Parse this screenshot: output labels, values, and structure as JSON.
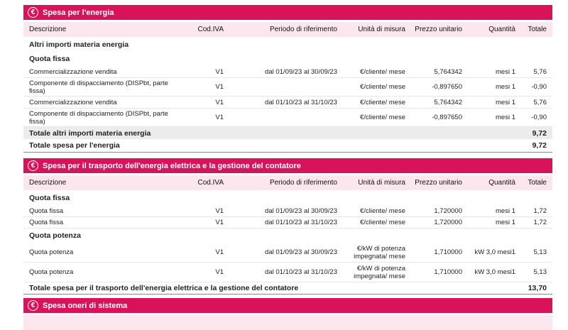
{
  "columns": {
    "descrizione": "Descrizione",
    "cod_iva": "Cod.IVA",
    "periodo": "Periodo di riferimento",
    "unita": "Unità di misura",
    "prezzo": "Prezzo unitario",
    "quantita": "Quantità",
    "totale": "Totale"
  },
  "energia": {
    "title": "Spesa per l'energia",
    "group_title": "Altri importi materia energia",
    "sub_title": "Quota fissa",
    "rows": [
      {
        "desc": "Commercializzazione vendita",
        "iva": "V1",
        "periodo": "dal 01/09/23 al 30/09/23",
        "unita": "€/cliente/ mese",
        "prezzo": "5,764342",
        "quantita": "mesi 1",
        "totale": "5,76"
      },
      {
        "desc": "Componente di dispacciamento (DISPbt, parte fissa)",
        "iva": "V1",
        "periodo": "",
        "unita": "€/cliente/ mese",
        "prezzo": "-0,897650",
        "quantita": "mesi 1",
        "totale": "-0,90"
      },
      {
        "desc": "Commercializzazione vendita",
        "iva": "V1",
        "periodo": "dal 01/10/23 al 31/10/23",
        "unita": "€/cliente/ mese",
        "prezzo": "5,764342",
        "quantita": "mesi 1",
        "totale": "5,76"
      },
      {
        "desc": "Componente di dispacciamento (DISPbt, parte fissa)",
        "iva": "V1",
        "periodo": "",
        "unita": "€/cliente/ mese",
        "prezzo": "-0,897650",
        "quantita": "mesi 1",
        "totale": "-0,90"
      }
    ],
    "subtotal_label": "Totale altri importi materia energia",
    "subtotal_value": "9,72",
    "total_label": "Totale spesa per l'energia",
    "total_value": "9,72"
  },
  "trasporto": {
    "title": "Spesa per il trasporto dell'energia elettrica e la gestione del contatore",
    "fissa_title": "Quota fissa",
    "fissa_rows": [
      {
        "desc": "Quota fissa",
        "iva": "V1",
        "periodo": "dal 01/09/23 al 30/09/23",
        "unita": "€/cliente/ mese",
        "prezzo": "1,720000",
        "quantita": "mesi 1",
        "totale": "1,72"
      },
      {
        "desc": "Quota fissa",
        "iva": "V1",
        "periodo": "dal 01/10/23 al 31/10/23",
        "unita": "€/cliente/ mese",
        "prezzo": "1,720000",
        "quantita": "mesi 1",
        "totale": "1,72"
      }
    ],
    "potenza_title": "Quota potenza",
    "potenza_rows": [
      {
        "desc": "Quota potenza",
        "iva": "V1",
        "periodo": "dal 01/09/23 al 30/09/23",
        "unita": "€/kW di potenza impegnata/ mese",
        "prezzo": "1,710000",
        "quantita": "kW 3,0 mesi1",
        "totale": "5,13"
      },
      {
        "desc": "Quota potenza",
        "iva": "V1",
        "periodo": "dal 01/10/23 al 31/10/23",
        "unita": "€/kW di potenza impegnata/ mese",
        "prezzo": "1,710000",
        "quantita": "kW 3,0 mesi1",
        "totale": "5,13"
      }
    ],
    "total_label": "Totale spesa per il trasporto dell'energia elettrica e la gestione del contatore",
    "total_value": "13,70"
  },
  "oneri": {
    "title": "Spesa oneri di sistema"
  },
  "colors": {
    "accent": "#d9135a",
    "header_bg": "#fde7ee",
    "subtotal_bg": "#ececec"
  },
  "icons": {
    "section_icon": "euro-icon"
  }
}
